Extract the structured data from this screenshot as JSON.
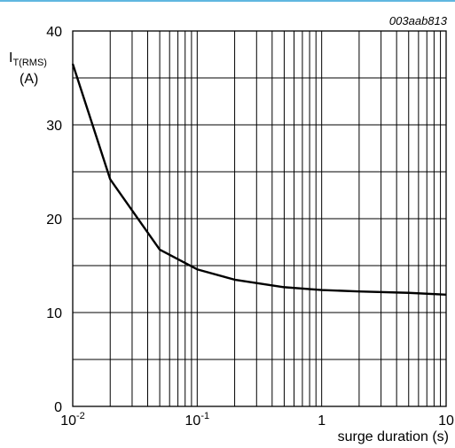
{
  "chart_data": {
    "type": "line",
    "identifier": "003aab813",
    "ylabel": {
      "main": "I",
      "sub": "T(RMS)",
      "unit": "(A)"
    },
    "xlabel": "surge duration (s)",
    "xscale": "log",
    "xlim": [
      0.01,
      10
    ],
    "ylim": [
      0,
      40
    ],
    "x_ticks": [
      {
        "base": "10",
        "exp": "-2",
        "value": 0.01
      },
      {
        "base": "10",
        "exp": "-1",
        "value": 0.1
      },
      {
        "base": "1",
        "exp": "",
        "value": 1
      },
      {
        "base": "10",
        "exp": "",
        "value": 10
      }
    ],
    "y_ticks": [
      "0",
      "10",
      "20",
      "30",
      "40"
    ],
    "y_ticks_values": [
      0,
      10,
      20,
      30,
      40
    ],
    "y_grid_step": 5,
    "grid": true,
    "series": [
      {
        "x": [
          0.01,
          0.02,
          0.05,
          0.1,
          0.2,
          0.5,
          1,
          2,
          5,
          10
        ],
        "values": [
          36.5,
          24.2,
          16.7,
          14.6,
          13.5,
          12.7,
          12.4,
          12.25,
          12.1,
          11.9
        ]
      }
    ]
  }
}
